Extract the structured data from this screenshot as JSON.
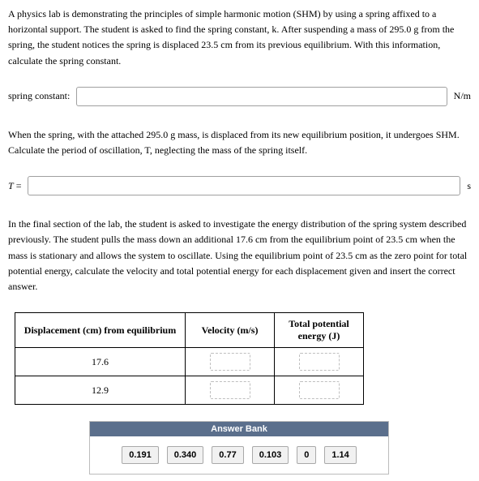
{
  "para1": "A physics lab is demonstrating the principles of simple harmonic motion (SHM) by using a spring affixed to a horizontal support. The student is asked to find the spring constant, k. After suspending a mass of 295.0 g from the spring, the student notices the spring is displaced 23.5 cm from its previous equilibrium. With this information, calculate the spring constant.",
  "q1": {
    "label": "spring constant:",
    "unit": "N/m"
  },
  "para2": "When the spring, with the attached 295.0 g mass, is displaced from its new equilibrium position, it undergoes SHM. Calculate the period of oscillation, T, neglecting the mass of the spring itself.",
  "q2": {
    "label_prefix": "T",
    "label_eq": " =",
    "unit": "s"
  },
  "para3": "In the final section of the lab, the student is asked to investigate the energy distribution of the spring system described previously. The student pulls the mass down an additional 17.6 cm from the equilibrium point of 23.5 cm when the mass is stationary and allows the system to oscillate. Using the equilibrium point of 23.5 cm as the zero point for total potential energy, calculate the velocity and total potential energy for each displacement given and insert the correct answer.",
  "table": {
    "headers": {
      "disp": "Displacement (cm) from equilibrium",
      "vel": "Velocity (m/s)",
      "ener": "Total potential energy (J)"
    },
    "rows": [
      {
        "disp": "17.6"
      },
      {
        "disp": "12.9"
      }
    ]
  },
  "answer_bank": {
    "title": "Answer Bank",
    "chips": [
      "0.191",
      "0.340",
      "0.77",
      "0.103",
      "0",
      "1.14"
    ]
  }
}
